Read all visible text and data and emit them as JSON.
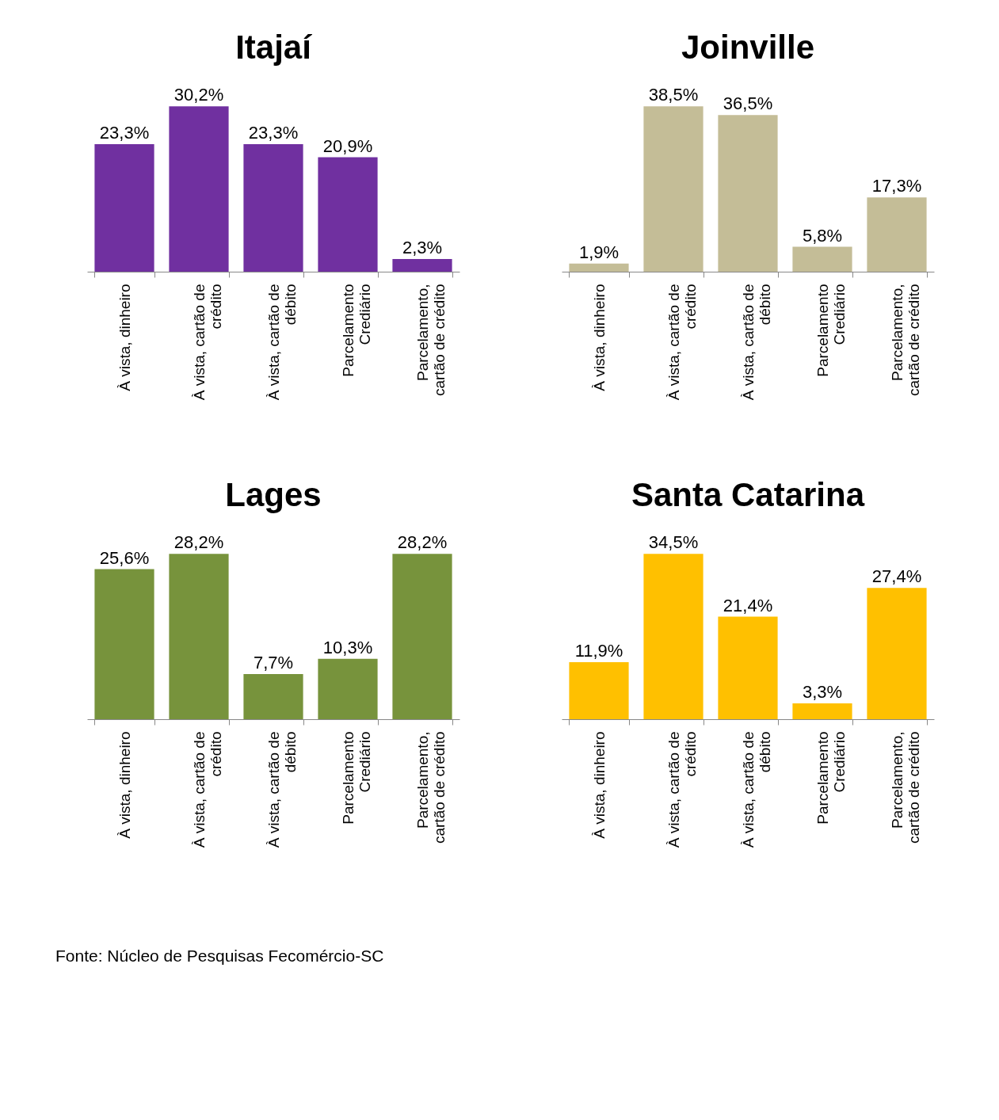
{
  "chart_data": [
    {
      "type": "bar",
      "title": "Itajaí",
      "categories": [
        "À vista, dinheiro",
        "À vista, cartão de crédito",
        "À vista, cartão de débito",
        "Parcelamento Crediário",
        "Parcelamento, cartão de crédito"
      ],
      "values": [
        23.3,
        30.2,
        23.3,
        20.9,
        2.3
      ],
      "value_labels": [
        "23,3%",
        "30,2%",
        "23,3%",
        "20,9%",
        "2,3%"
      ],
      "color": "#7030a0",
      "tick_labels": "x",
      "grid": false
    },
    {
      "type": "bar",
      "title": "Joinville",
      "categories": [
        "À vista, dinheiro",
        "À vista, cartão de crédito",
        "À vista, cartão de débito",
        "Parcelamento Crediário",
        "Parcelamento, cartão de crédito"
      ],
      "values": [
        1.9,
        38.5,
        36.5,
        5.8,
        17.3
      ],
      "value_labels": [
        "1,9%",
        "38,5%",
        "36,5%",
        "5,8%",
        "17,3%"
      ],
      "color": "#c4bd97",
      "tick_labels": "x",
      "grid": false
    },
    {
      "type": "bar",
      "title": "Lages",
      "categories": [
        "À vista, dinheiro",
        "À vista, cartão de crédito",
        "À vista, cartão de débito",
        "Parcelamento Crediário",
        "Parcelamento, cartão de crédito"
      ],
      "values": [
        25.6,
        28.2,
        7.7,
        10.3,
        28.2
      ],
      "value_labels": [
        "25,6%",
        "28,2%",
        "7,7%",
        "10,3%",
        "28,2%"
      ],
      "color": "#77933c",
      "tick_labels": "x",
      "grid": false,
      "annotations": [
        "Fonte: Núcleo de Pesquisas Fecomércio-SC"
      ]
    },
    {
      "type": "bar",
      "title": "Santa Catarina",
      "categories": [
        "À vista, dinheiro",
        "À vista, cartão de crédito",
        "À vista, cartão de débito",
        "Parcelamento Crediário",
        "Parcelamento, cartão de crédito"
      ],
      "values": [
        11.9,
        34.5,
        21.4,
        3.3,
        27.4
      ],
      "value_labels": [
        "11,9%",
        "34,5%",
        "21,4%",
        "3,3%",
        "27,4%"
      ],
      "color": "#ffc000",
      "tick_labels": "x",
      "grid": false
    }
  ]
}
